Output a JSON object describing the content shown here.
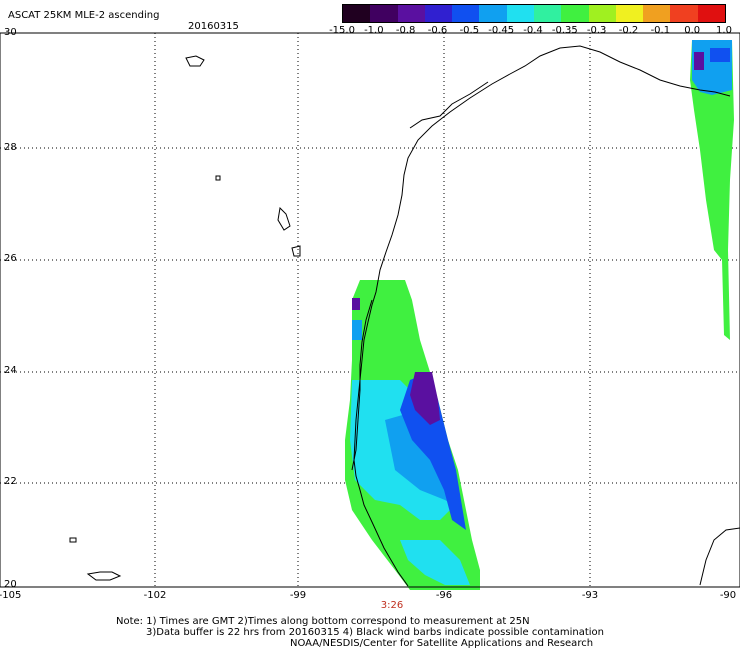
{
  "header": {
    "title": "ASCAT 25KM MLE-2 ascending",
    "date": "20160315"
  },
  "colorbar": {
    "labels": [
      "-15.0",
      "-1.0",
      "-0.8",
      "-0.6",
      "-0.5",
      "-0.45",
      "-0.4",
      "-0.35",
      "-0.3",
      "-0.2",
      "-0.1",
      "0.0",
      "1.0"
    ],
    "colors": [
      "#200020",
      "#400060",
      "#5a10a0",
      "#3020d0",
      "#1050f0",
      "#10a0f0",
      "#20e0f0",
      "#30f0a0",
      "#40f040",
      "#a0f020",
      "#f0f020",
      "#f0a020",
      "#f04020",
      "#e01010"
    ]
  },
  "axes": {
    "lat_labels": [
      "30",
      "28",
      "26",
      "24",
      "22",
      "20"
    ],
    "lon_labels": [
      "-105",
      "-102",
      "-99",
      "-96",
      "-93",
      "-90"
    ]
  },
  "pass_time": "3:26",
  "footer": {
    "line1": "Note: 1) Times are GMT 2)Times along bottom correspond to measurement at 25N",
    "line2": "3)Data buffer is 22 hrs from 20160315 4) Black wind barbs indicate possible contamination",
    "line3": "NOAA/NESDIS/Center for Satellite Applications and Research"
  }
}
